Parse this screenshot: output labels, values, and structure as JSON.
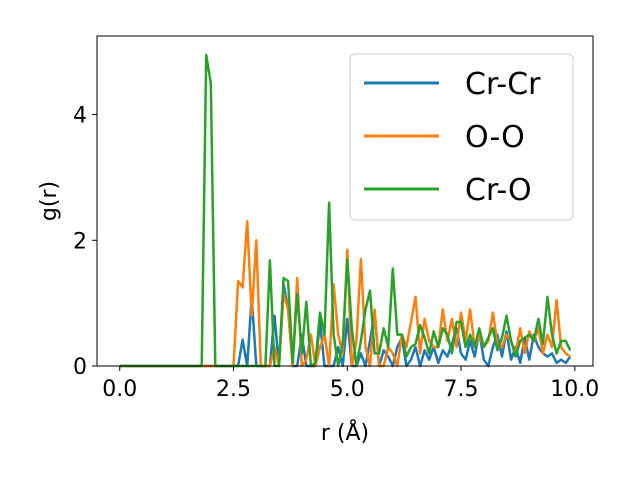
{
  "chart_data": {
    "type": "line",
    "xlabel": "r (Å)",
    "ylabel": "g(r)",
    "xlim": [
      -0.5,
      10.4
    ],
    "ylim": [
      0,
      5.25
    ],
    "xticks": [
      0.0,
      2.5,
      5.0,
      7.5,
      10.0
    ],
    "xtick_labels": [
      "0.0",
      "2.5",
      "5.0",
      "7.5",
      "10.0"
    ],
    "yticks": [
      0,
      2,
      4
    ],
    "ytick_labels": [
      "0",
      "2",
      "4"
    ],
    "grid": false,
    "legend_position": "top-right",
    "x": [
      0.0,
      0.1,
      0.2,
      0.3,
      0.4,
      0.5,
      0.6,
      0.7,
      0.8,
      0.9,
      1.0,
      1.1,
      1.2,
      1.3,
      1.4,
      1.5,
      1.6,
      1.7,
      1.8,
      1.9,
      2.0,
      2.1,
      2.2,
      2.3,
      2.4,
      2.5,
      2.6,
      2.7,
      2.8,
      2.9,
      3.0,
      3.1,
      3.2,
      3.3,
      3.4,
      3.5,
      3.6,
      3.7,
      3.8,
      3.9,
      4.0,
      4.1,
      4.2,
      4.3,
      4.4,
      4.5,
      4.6,
      4.7,
      4.8,
      4.9,
      5.0,
      5.1,
      5.2,
      5.3,
      5.4,
      5.5,
      5.6,
      5.7,
      5.8,
      5.9,
      6.0,
      6.1,
      6.2,
      6.3,
      6.4,
      6.5,
      6.6,
      6.7,
      6.8,
      6.9,
      7.0,
      7.1,
      7.2,
      7.3,
      7.4,
      7.5,
      7.6,
      7.7,
      7.8,
      7.9,
      8.0,
      8.1,
      8.2,
      8.3,
      8.4,
      8.5,
      8.6,
      8.7,
      8.8,
      8.9,
      9.0,
      9.1,
      9.2,
      9.3,
      9.4,
      9.5,
      9.6,
      9.7,
      9.8,
      9.9
    ],
    "series": [
      {
        "name": "Cr-Cr",
        "color": "#1f77b4",
        "values": [
          0,
          0,
          0,
          0,
          0,
          0,
          0,
          0,
          0,
          0,
          0,
          0,
          0,
          0,
          0,
          0,
          0,
          0,
          0,
          0,
          0,
          0,
          0,
          0,
          0,
          0,
          0,
          0.42,
          0,
          1.1,
          0,
          0,
          0,
          0,
          0.8,
          0,
          1.3,
          0.9,
          0,
          0,
          0.5,
          0,
          0,
          0,
          0.7,
          0,
          0,
          0,
          0.3,
          0,
          0.75,
          0,
          0,
          0.2,
          0,
          0.4,
          0.85,
          0,
          0.25,
          0.15,
          0,
          0.3,
          0.45,
          0,
          0.1,
          0.3,
          0,
          0.25,
          0.1,
          0.3,
          0.05,
          0.25,
          0.15,
          0.35,
          0.6,
          0.2,
          0.1,
          0.4,
          0.15,
          0.55,
          0.1,
          0,
          0.3,
          0.5,
          0.15,
          0.55,
          0.1,
          0.3,
          0.05,
          0.45,
          0.1,
          0.5,
          0.3,
          0.2,
          0.15,
          0.2,
          0.05,
          0.1,
          0.05,
          0.15
        ]
      },
      {
        "name": "O-O",
        "color": "#ff7f0e",
        "values": [
          0,
          0,
          0,
          0,
          0,
          0,
          0,
          0,
          0,
          0,
          0,
          0,
          0,
          0,
          0,
          0,
          0,
          0,
          0,
          0,
          0,
          0,
          0,
          0,
          0,
          0,
          1.35,
          1.25,
          2.3,
          0.8,
          2.0,
          0,
          0,
          0,
          0.3,
          0,
          1.15,
          0.9,
          0,
          1.4,
          0,
          0.1,
          0.5,
          0,
          0.3,
          0.5,
          0,
          1.3,
          0.5,
          0.2,
          1.85,
          0,
          0.4,
          1.7,
          0.3,
          0,
          0.9,
          0,
          0,
          0.3,
          0.2,
          0,
          0.5,
          0.3,
          0.7,
          1.1,
          0.2,
          0.75,
          0.4,
          0.3,
          0.3,
          0.9,
          0.4,
          0.75,
          0.3,
          0.85,
          0.4,
          0.9,
          0.3,
          0.5,
          0.3,
          0.4,
          0.85,
          0.35,
          0.3,
          0.5,
          0.4,
          0.2,
          0.6,
          0.2,
          0.55,
          0.4,
          0.6,
          0.2,
          0.5,
          0.3,
          1.05,
          0.3,
          0.2,
          0.15
        ]
      },
      {
        "name": "Cr-O",
        "color": "#2ca02c",
        "values": [
          0,
          0,
          0,
          0,
          0,
          0,
          0,
          0,
          0,
          0,
          0,
          0,
          0,
          0,
          0,
          0,
          0,
          0,
          0,
          4.95,
          4.5,
          0,
          0,
          0,
          0,
          0,
          0,
          0,
          0,
          0,
          0,
          0,
          0,
          1.68,
          0,
          0,
          1.4,
          1.35,
          0.05,
          1.15,
          0.2,
          1.02,
          0,
          0.05,
          0.85,
          0.5,
          2.6,
          0.5,
          0,
          0.35,
          1.7,
          0.6,
          0,
          0.4,
          0.9,
          1.2,
          0.2,
          0.2,
          0.6,
          0.3,
          1.55,
          0.5,
          0.5,
          0.15,
          0.3,
          0.35,
          0.65,
          0.45,
          0.2,
          0.55,
          0.3,
          0.6,
          0.5,
          0.2,
          0.7,
          0.7,
          0.3,
          0.5,
          0.3,
          0.6,
          0.3,
          0.45,
          0.6,
          0.25,
          0.45,
          0.8,
          0.4,
          0.15,
          0.4,
          0.45,
          0.5,
          0.4,
          0.75,
          0.35,
          1.1,
          0.5,
          0.2,
          0.4,
          0.4,
          0.25
        ]
      }
    ]
  }
}
